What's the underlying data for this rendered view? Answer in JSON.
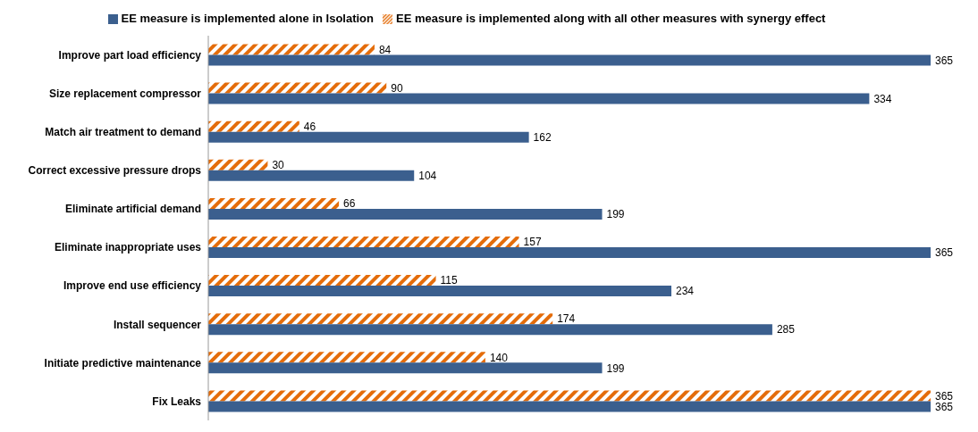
{
  "chart_data": {
    "type": "bar",
    "orientation": "horizontal",
    "legend": "top",
    "data_labels": true,
    "categories": [
      "Improve part load efficiency",
      "Size replacement compressor ",
      "Match air treatment to demand",
      "Correct excessive pressure drops",
      "Eliminate artificial demand ",
      "Eliminate inappropriate uses",
      "Improve end use efficiency",
      "Install sequencer",
      "Initiate predictive maintenance ",
      "Fix Leaks"
    ],
    "series": [
      {
        "name": "EE measure is implemented along with all other measures with synergy effect",
        "color": "#e46c0a",
        "values": [
          84,
          90,
          46,
          30,
          66,
          157,
          115,
          174,
          140,
          365
        ]
      },
      {
        "name": "EE measure is implemented alone in Isolation",
        "color": "#3b5f8e",
        "values": [
          365,
          334,
          162,
          104,
          199,
          365,
          234,
          285,
          199,
          365
        ]
      }
    ]
  }
}
